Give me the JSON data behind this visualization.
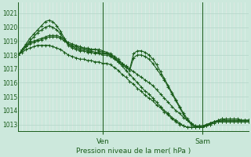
{
  "title": "Pression niveau de la mer( hPa )",
  "background_color": "#cce8dc",
  "grid_color_h": "#b8d8cc",
  "grid_color_v_white": "#ddeee8",
  "grid_color_v_red": "#e8b8b8",
  "line_color": "#1a5c1a",
  "xlim": [
    0,
    60
  ],
  "ylim": [
    1012.5,
    1021.8
  ],
  "yticks": [
    1013,
    1014,
    1015,
    1016,
    1017,
    1018,
    1019,
    1020,
    1021
  ],
  "ven_x": 22,
  "sam_x": 48,
  "n_x_points": 61,
  "series": [
    [
      1018.0,
      1018.3,
      1018.6,
      1018.8,
      1018.9,
      1019.0,
      1019.1,
      1019.2,
      1019.3,
      1019.3,
      1019.3,
      1019.2,
      1019.0,
      1018.8,
      1018.7,
      1018.6,
      1018.5,
      1018.5,
      1018.4,
      1018.4,
      1018.4,
      1018.4,
      1018.3,
      1018.2,
      1018.1,
      1017.9,
      1017.7,
      1017.4,
      1017.2,
      1017.0,
      1016.8,
      1016.6,
      1016.4,
      1016.2,
      1016.0,
      1015.8,
      1015.5,
      1015.2,
      1014.9,
      1014.6,
      1014.3,
      1014.0,
      1013.8,
      1013.5,
      1013.3,
      1013.1,
      1012.9,
      1012.9,
      1012.9,
      1012.9,
      1013.0,
      1013.1,
      1013.2,
      1013.3,
      1013.3,
      1013.3,
      1013.3,
      1013.3,
      1013.3,
      1013.3,
      1013.3
    ],
    [
      1018.0,
      1018.3,
      1018.6,
      1018.9,
      1019.0,
      1019.1,
      1019.2,
      1019.3,
      1019.4,
      1019.4,
      1019.4,
      1019.3,
      1019.1,
      1018.9,
      1018.8,
      1018.7,
      1018.6,
      1018.5,
      1018.5,
      1018.4,
      1018.4,
      1018.3,
      1018.2,
      1018.1,
      1018.0,
      1017.8,
      1017.5,
      1017.2,
      1016.9,
      1016.6,
      1016.3,
      1016.0,
      1015.7,
      1015.4,
      1015.2,
      1014.9,
      1014.6,
      1014.3,
      1014.0,
      1013.8,
      1013.5,
      1013.3,
      1013.1,
      1012.9,
      1012.8,
      1012.8,
      1012.8,
      1012.8,
      1012.9,
      1013.0,
      1013.1,
      1013.2,
      1013.2,
      1013.2,
      1013.2,
      1013.2,
      1013.2,
      1013.2,
      1013.2,
      1013.2,
      1013.2
    ],
    [
      1018.0,
      1018.4,
      1018.8,
      1019.2,
      1019.5,
      1019.8,
      1020.1,
      1020.4,
      1020.5,
      1020.4,
      1020.1,
      1019.7,
      1019.2,
      1018.8,
      1018.6,
      1018.5,
      1018.4,
      1018.4,
      1018.3,
      1018.3,
      1018.2,
      1018.2,
      1018.1,
      1018.1,
      1018.0,
      1017.8,
      1017.6,
      1017.4,
      1017.2,
      1017.0,
      1018.1,
      1018.3,
      1018.3,
      1018.2,
      1018.0,
      1017.7,
      1017.3,
      1016.8,
      1016.3,
      1015.8,
      1015.3,
      1014.8,
      1014.3,
      1013.8,
      1013.4,
      1013.1,
      1012.9,
      1012.8,
      1012.8,
      1012.9,
      1013.0,
      1013.2,
      1013.3,
      1013.4,
      1013.4,
      1013.4,
      1013.4,
      1013.4,
      1013.3,
      1013.3,
      1013.3
    ],
    [
      1018.0,
      1018.4,
      1018.7,
      1019.0,
      1019.3,
      1019.6,
      1019.8,
      1020.0,
      1020.1,
      1020.0,
      1019.8,
      1019.5,
      1019.1,
      1018.7,
      1018.5,
      1018.4,
      1018.3,
      1018.3,
      1018.2,
      1018.2,
      1018.1,
      1018.1,
      1018.0,
      1018.0,
      1017.9,
      1017.7,
      1017.5,
      1017.3,
      1017.1,
      1016.9,
      1017.8,
      1018.0,
      1018.0,
      1017.9,
      1017.7,
      1017.4,
      1017.0,
      1016.6,
      1016.2,
      1015.7,
      1015.2,
      1014.7,
      1014.2,
      1013.7,
      1013.3,
      1013.0,
      1012.8,
      1012.8,
      1012.8,
      1012.9,
      1013.1,
      1013.2,
      1013.3,
      1013.4,
      1013.3,
      1013.3,
      1013.3,
      1013.3,
      1013.3,
      1013.3,
      1013.3
    ],
    [
      1018.0,
      1018.2,
      1018.4,
      1018.5,
      1018.6,
      1018.7,
      1018.7,
      1018.7,
      1018.7,
      1018.6,
      1018.5,
      1018.4,
      1018.2,
      1018.0,
      1017.9,
      1017.8,
      1017.7,
      1017.7,
      1017.6,
      1017.6,
      1017.5,
      1017.5,
      1017.4,
      1017.4,
      1017.3,
      1017.1,
      1016.9,
      1016.6,
      1016.4,
      1016.1,
      1015.9,
      1015.6,
      1015.4,
      1015.1,
      1014.9,
      1014.7,
      1014.4,
      1014.2,
      1013.9,
      1013.7,
      1013.4,
      1013.2,
      1013.0,
      1012.9,
      1012.8,
      1012.8,
      1012.8,
      1012.9,
      1012.9,
      1013.0,
      1013.1,
      1013.2,
      1013.2,
      1013.2,
      1013.2,
      1013.2,
      1013.2,
      1013.2,
      1013.2,
      1013.2,
      1013.2
    ]
  ]
}
